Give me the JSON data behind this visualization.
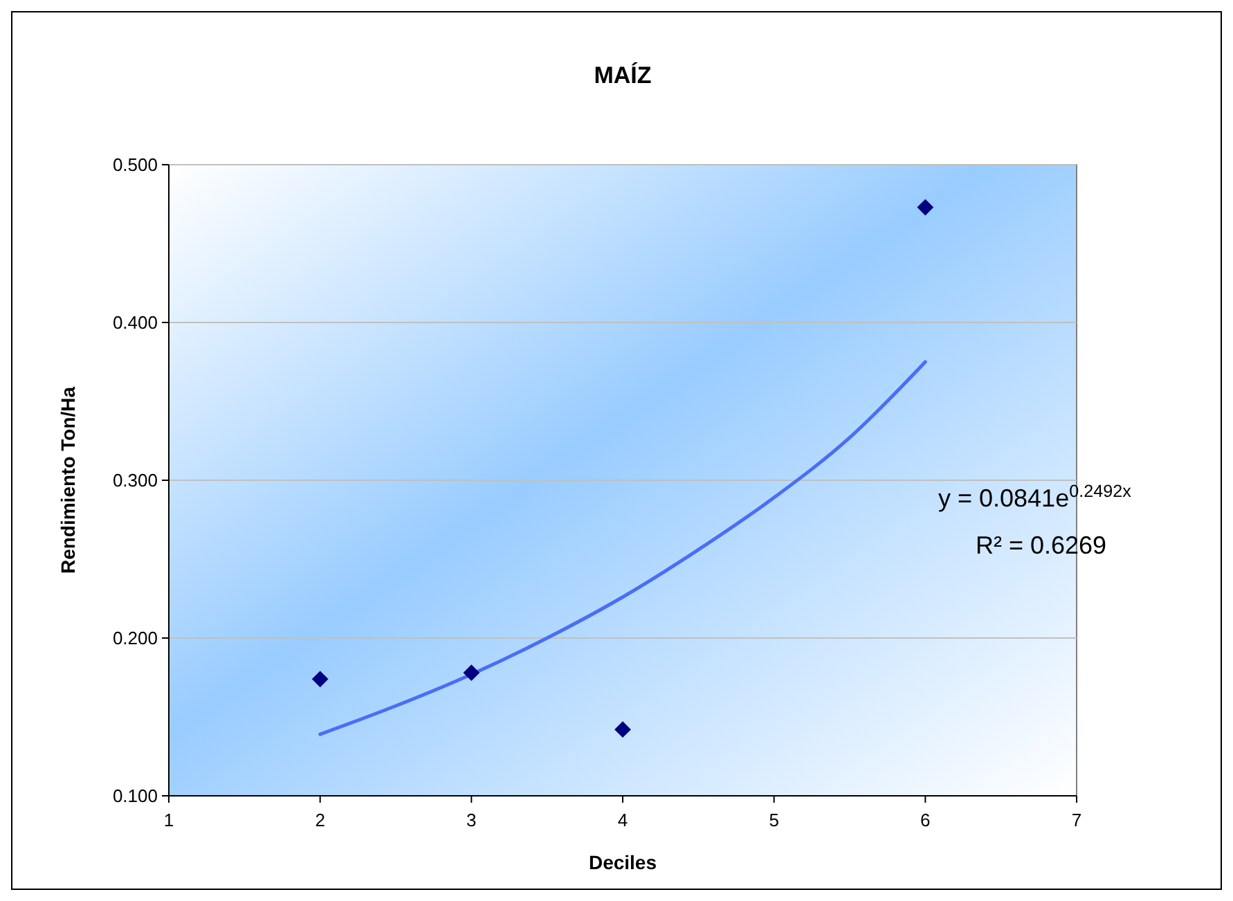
{
  "chart_data": {
    "type": "scatter",
    "title": "MAÍZ",
    "xlabel": "Deciles",
    "ylabel": "Rendimiento Ton/Ha",
    "xlim": [
      1,
      7
    ],
    "xticks": [
      1,
      2,
      3,
      4,
      5,
      6,
      7
    ],
    "ylim": [
      0.1,
      0.5
    ],
    "yticks": [
      {
        "value": 0.1,
        "label": "0.100"
      },
      {
        "value": 0.2,
        "label": "0.200"
      },
      {
        "value": 0.3,
        "label": "0.300"
      },
      {
        "value": 0.4,
        "label": "0.400"
      },
      {
        "value": 0.5,
        "label": "0.500"
      }
    ],
    "grid": "y",
    "marker": "diamond",
    "series": [
      {
        "color": "#000080",
        "x": [
          2,
          3,
          4,
          6
        ],
        "values": [
          0.174,
          0.178,
          0.142,
          0.473
        ]
      },
      {
        "type": "line",
        "color": "#4a6ef5",
        "marker": "none",
        "line_style": "solid",
        "x": [
          2,
          2.5,
          3,
          3.5,
          4,
          4.5,
          5,
          5.5,
          6
        ],
        "values": [
          0.139,
          0.157,
          0.177,
          0.2,
          0.226,
          0.256,
          0.289,
          0.327,
          0.375
        ]
      }
    ],
    "annotations": [
      "y = 0.0841e$^{0.2492x}$",
      "R² = 0.6269"
    ]
  }
}
